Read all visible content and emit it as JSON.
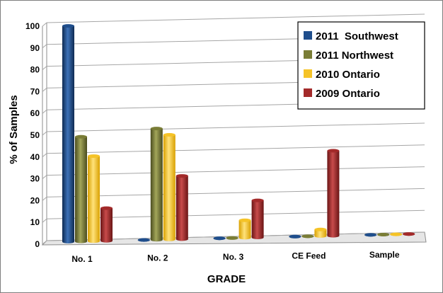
{
  "chart_data": {
    "type": "bar",
    "xlabel": "GRADE",
    "ylabel": "% of Samples",
    "ylim": [
      0,
      100
    ],
    "yticks": [
      "0",
      "10",
      "20",
      "30",
      "40",
      "50",
      "60",
      "70",
      "80",
      "90",
      "100"
    ],
    "categories": [
      "No. 1",
      "No. 2",
      "No. 3",
      "CE Feed",
      "Sample"
    ],
    "series": [
      {
        "name": "2011  Southwest",
        "color": "#1f4e8c",
        "values": [
          99,
          0,
          0,
          0,
          0
        ]
      },
      {
        "name": "2011 Northwest",
        "color": "#7a7d36",
        "values": [
          48,
          51,
          0,
          0,
          0
        ]
      },
      {
        "name": "2010 Ontario",
        "color": "#f5c327",
        "values": [
          39,
          48,
          8,
          3,
          0
        ]
      },
      {
        "name": "2009 Ontario",
        "color": "#a32a2a",
        "values": [
          15,
          29,
          17,
          39,
          0
        ]
      }
    ],
    "grid": true,
    "legend_position": "top-right"
  }
}
